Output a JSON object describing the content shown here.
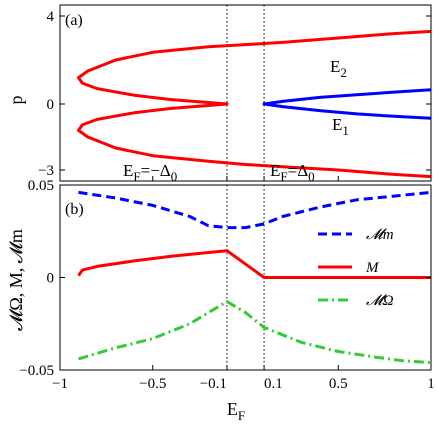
{
  "chart_data": [
    {
      "type": "line",
      "panel_label": "(a)",
      "ylabel": "p",
      "xlim": [
        -1,
        1
      ],
      "ylim": [
        -3.5,
        4.5
      ],
      "yticks": [
        -3,
        0,
        4
      ],
      "ytick_labels": [
        "−3",
        "0",
        "4"
      ],
      "grid": false,
      "vlines": [
        -0.1,
        0.1
      ],
      "curve_labels": {
        "upper": {
          "base": "E",
          "sub": "2"
        },
        "lower": {
          "base": "E",
          "sub": "1"
        }
      },
      "annotations": [
        {
          "base": "E",
          "sub": "F",
          "eq": "=−Δ",
          "sub2": "0"
        },
        {
          "base": "E",
          "sub": "F",
          "eq": "=Δ",
          "sub2": "0"
        }
      ],
      "series": [
        {
          "name": "E2",
          "color": "#ff0000",
          "branches": [
            {
              "x": [
                1.0,
                0.8,
                0.5,
                0.2,
                0.0,
                -0.2,
                -0.5,
                -0.7,
                -0.85,
                -0.9,
                -0.88,
                -0.8,
                -0.6,
                -0.4,
                -0.2,
                -0.1
              ],
              "y": [
                3.3,
                3.2,
                3.0,
                2.8,
                2.7,
                2.6,
                2.35,
                2.0,
                1.5,
                1.2,
                0.95,
                0.7,
                0.4,
                0.2,
                0.07,
                0.0
              ]
            },
            {
              "x": [
                -0.1,
                -0.2,
                -0.4,
                -0.6,
                -0.8,
                -0.88,
                -0.9,
                -0.85,
                -0.7,
                -0.5,
                -0.2,
                0.0,
                0.2,
                0.5,
                0.8,
                1.0
              ],
              "y": [
                0.0,
                -0.07,
                -0.2,
                -0.4,
                -0.7,
                -0.95,
                -1.2,
                -1.5,
                -2.0,
                -2.35,
                -2.6,
                -2.75,
                -2.85,
                -3.0,
                -3.2,
                -3.3
              ]
            }
          ]
        },
        {
          "name": "E1",
          "color": "#0000ff",
          "branches": [
            {
              "x": [
                0.1,
                0.2,
                0.4,
                0.6,
                0.8,
                1.0
              ],
              "y": [
                0.0,
                0.12,
                0.3,
                0.42,
                0.54,
                0.65
              ]
            },
            {
              "x": [
                0.1,
                0.2,
                0.4,
                0.6,
                0.8,
                1.0
              ],
              "y": [
                0.0,
                -0.12,
                -0.3,
                -0.45,
                -0.56,
                -0.65
              ]
            }
          ]
        }
      ]
    },
    {
      "type": "line",
      "panel_label": "(b)",
      "xlabel": {
        "base": "E",
        "sub": "F"
      },
      "ylabel": "𝓜Ω, M, 𝓜m",
      "xlim": [
        -1,
        1
      ],
      "ylim": [
        -0.05,
        0.05
      ],
      "xticks": [
        -1,
        -0.5,
        -0.1,
        0.1,
        0.5,
        1
      ],
      "xtick_labels": [
        "−1",
        "−0.5",
        "−0.1",
        "0.1",
        "0.5",
        "1"
      ],
      "yticks": [
        -0.05,
        0,
        0.05
      ],
      "ytick_labels": [
        "−0.05",
        "0",
        "0.05"
      ],
      "grid": false,
      "vlines": [
        -0.1,
        0.1
      ],
      "legend": {
        "position": "right"
      },
      "series": [
        {
          "name": "𝓜m",
          "color": "#0000ff",
          "style": "dashed",
          "x": [
            -0.9,
            -0.7,
            -0.5,
            -0.3,
            -0.2,
            -0.1,
            0.0,
            0.1,
            0.2,
            0.4,
            0.6,
            0.8,
            1.0
          ],
          "y": [
            0.046,
            0.043,
            0.039,
            0.033,
            0.028,
            0.027,
            0.027,
            0.029,
            0.033,
            0.038,
            0.042,
            0.044,
            0.046
          ]
        },
        {
          "name": "M",
          "color": "#ff0000",
          "style": "solid",
          "x": [
            -0.9,
            -0.88,
            -0.8,
            -0.6,
            -0.4,
            -0.2,
            -0.1,
            0.1,
            0.4,
            0.7,
            1.0
          ],
          "y": [
            0.001,
            0.004,
            0.006,
            0.009,
            0.0115,
            0.0135,
            0.0145,
            0.0,
            0.0,
            0.0,
            0.0
          ]
        },
        {
          "name": "𝓜Ω",
          "color": "#33cc33",
          "style": "dashdot",
          "x": [
            -0.9,
            -0.7,
            -0.5,
            -0.3,
            -0.2,
            -0.1,
            0.0,
            0.1,
            0.3,
            0.5,
            0.7,
            0.85,
            1.0
          ],
          "y": [
            -0.044,
            -0.038,
            -0.033,
            -0.025,
            -0.019,
            -0.013,
            -0.019,
            -0.027,
            -0.035,
            -0.04,
            -0.043,
            -0.045,
            -0.046
          ]
        }
      ]
    }
  ]
}
